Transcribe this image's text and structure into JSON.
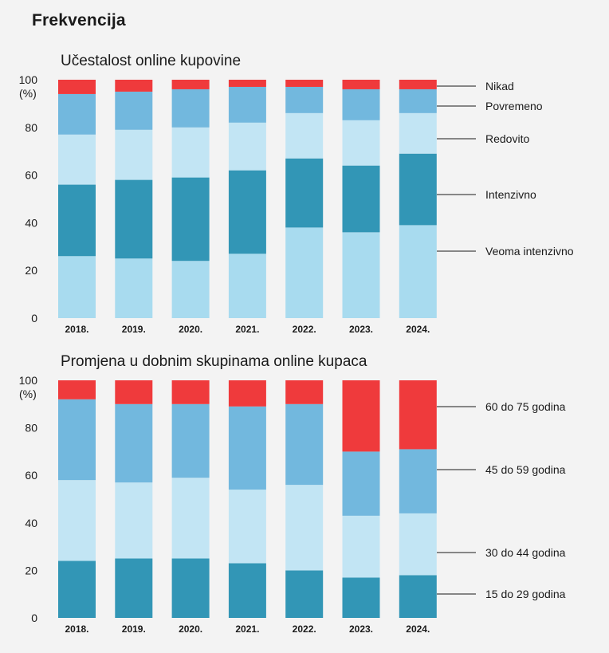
{
  "header": {
    "title": "Frekvencija"
  },
  "colors": {
    "c_light": "#a8dbef",
    "c_pale": "#c2e5f4",
    "c_dark": "#3296b6",
    "c_mid": "#72b8de",
    "c_red": "#ef3a3c"
  },
  "chart_data": [
    {
      "type": "bar",
      "stacked": true,
      "title": "Učestalost online kupovine",
      "ylabel": "(%)",
      "ylim": [
        0,
        100
      ],
      "yticks": [
        0,
        20,
        40,
        60,
        80,
        100
      ],
      "categories": [
        "2018.",
        "2019.",
        "2020.",
        "2021.",
        "2022.",
        "2023.",
        "2024."
      ],
      "series": [
        {
          "name": "Veoma intenzivno",
          "color": "#a8dbef",
          "values": [
            26,
            25,
            24,
            27,
            38,
            36,
            39
          ]
        },
        {
          "name": "Intenzivno",
          "color": "#3296b6",
          "values": [
            30,
            33,
            35,
            35,
            29,
            28,
            30
          ]
        },
        {
          "name": "Redovito",
          "color": "#c2e5f4",
          "values": [
            21,
            21,
            21,
            20,
            19,
            19,
            17
          ]
        },
        {
          "name": "Povremeno",
          "color": "#72b8de",
          "values": [
            17,
            16,
            16,
            15,
            11,
            13,
            10
          ]
        },
        {
          "name": "Nikad",
          "color": "#ef3a3c",
          "values": [
            6,
            5,
            4,
            3,
            3,
            4,
            4
          ]
        }
      ]
    },
    {
      "type": "bar",
      "stacked": true,
      "title": "Promjena u dobnim skupinama online kupaca",
      "ylabel": "(%)",
      "ylim": [
        0,
        100
      ],
      "yticks": [
        0,
        20,
        40,
        60,
        80,
        100
      ],
      "categories": [
        "2018.",
        "2019.",
        "2020.",
        "2021.",
        "2022.",
        "2023.",
        "2024."
      ],
      "series": [
        {
          "name": "15 do 29 godina",
          "color": "#3296b6",
          "values": [
            24,
            25,
            25,
            23,
            20,
            17,
            18
          ]
        },
        {
          "name": "30 do 44 godina",
          "color": "#c2e5f4",
          "values": [
            34,
            32,
            34,
            31,
            36,
            26,
            26
          ]
        },
        {
          "name": "45 do 59 godina",
          "color": "#72b8de",
          "values": [
            34,
            33,
            31,
            35,
            34,
            27,
            27
          ]
        },
        {
          "name": "60 do 75 godina",
          "color": "#ef3a3c",
          "values": [
            8,
            10,
            10,
            11,
            10,
            30,
            29
          ]
        }
      ]
    }
  ]
}
